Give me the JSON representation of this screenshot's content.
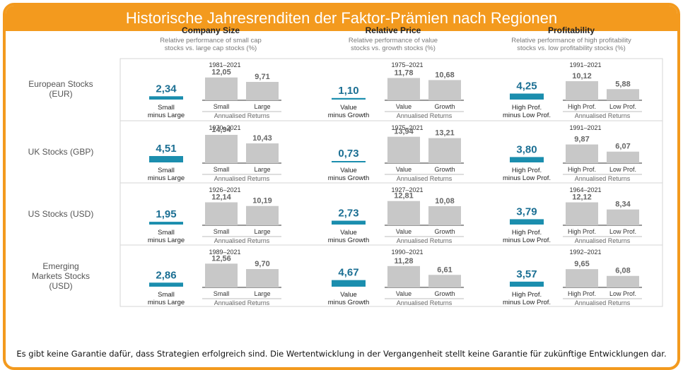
{
  "title": "Historische Jahresrenditen der Faktor-Prämien nach Regionen",
  "footer": "Es gibt keine Garantie dafür, dass Strategien erfolgreich sind. Die Wertentwicklung in der Vergangenheit stellt keine Garantie für zukünftige Entwicklungen dar.",
  "colors": {
    "accent": "#f39a1e",
    "premium_bar": "#1b8eae",
    "return_bar": "#c8c8c8",
    "value_text": "#1b6f93"
  },
  "chart_data": {
    "type": "bar",
    "annualised_label": "Annualised Returns",
    "columns": [
      {
        "title": "Company Size",
        "subtitle_lines": [
          "Relative performance of small cap",
          "stocks vs. large cap stocks (%)"
        ],
        "premium_label_lines": [
          "Small",
          "minus Large"
        ],
        "bar_labels": [
          "Small",
          "Large"
        ]
      },
      {
        "title": "Relative Price",
        "subtitle_lines": [
          "Relative performance of value",
          "stocks vs. growth stocks (%)"
        ],
        "premium_label_lines": [
          "Value",
          "minus Growth"
        ],
        "bar_labels": [
          "Value",
          "Growth"
        ]
      },
      {
        "title": "Profitability",
        "subtitle_lines": [
          "Relative performance of high profitability",
          "stocks vs. low profitability stocks (%)"
        ],
        "premium_label_lines": [
          "High Prof.",
          "minus Low Prof."
        ],
        "bar_labels": [
          "High Prof.",
          "Low Prof."
        ]
      }
    ],
    "rows": [
      {
        "label_lines": [
          "European Stocks",
          "(EUR)"
        ],
        "cells": [
          {
            "period": "1981–2021",
            "premium": "2,34",
            "values": [
              "12,05",
              "9,71"
            ]
          },
          {
            "period": "1975–2021",
            "premium": "1,10",
            "values": [
              "11,78",
              "10,68"
            ]
          },
          {
            "period": "1991–2021",
            "premium": "4,25",
            "values": [
              "10,12",
              "5,88"
            ]
          }
        ]
      },
      {
        "label_lines": [
          "UK Stocks (GBP)"
        ],
        "cells": [
          {
            "period": "1970–2021",
            "premium": "4,51",
            "values": [
              "14,94",
              "10,43"
            ]
          },
          {
            "period": "1975–2021",
            "premium": "0,73",
            "values": [
              "13,94",
              "13,21"
            ]
          },
          {
            "period": "1991–2021",
            "premium": "3,80",
            "values": [
              "9,87",
              "6,07"
            ]
          }
        ]
      },
      {
        "label_lines": [
          "US Stocks (USD)"
        ],
        "cells": [
          {
            "period": "1926–2021",
            "premium": "1,95",
            "values": [
              "12,14",
              "10,19"
            ]
          },
          {
            "period": "1927–2021",
            "premium": "2,73",
            "values": [
              "12,81",
              "10,08"
            ]
          },
          {
            "period": "1964–2021",
            "premium": "3,79",
            "values": [
              "12,12",
              "8,34"
            ]
          }
        ]
      },
      {
        "label_lines": [
          "Emerging",
          "Markets Stocks",
          "(USD)"
        ],
        "cells": [
          {
            "period": "1989–2021",
            "premium": "2,86",
            "values": [
              "12,56",
              "9,70"
            ]
          },
          {
            "period": "1990–2021",
            "premium": "4,67",
            "values": [
              "11,28",
              "6,61"
            ]
          },
          {
            "period": "1992–2021",
            "premium": "3,57",
            "values": [
              "9,65",
              "6,08"
            ]
          }
        ]
      }
    ]
  }
}
